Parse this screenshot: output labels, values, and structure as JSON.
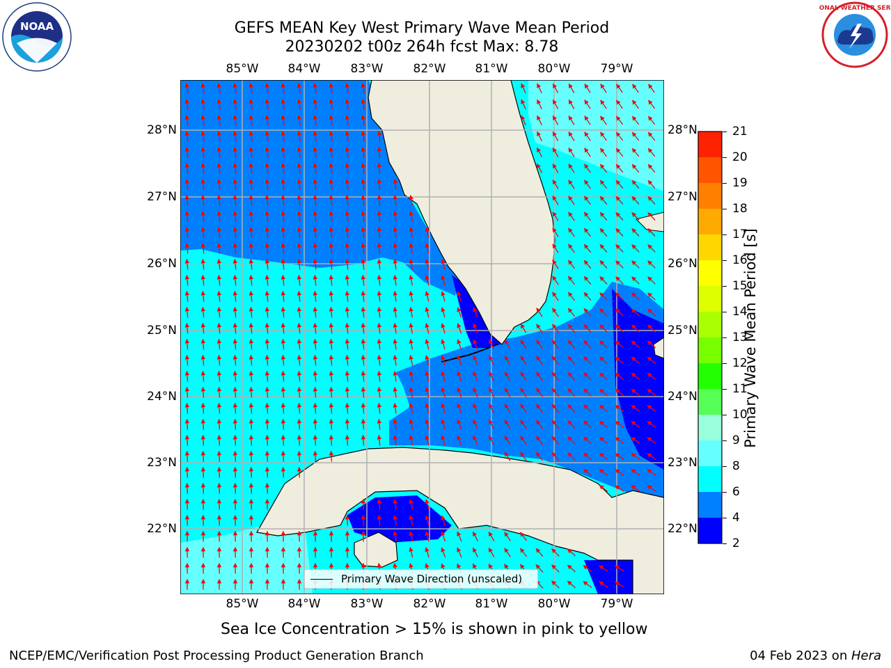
{
  "title_line1": "GEFS MEAN Key West Primary Wave Mean Period",
  "title_line2": "20230202 t00z 264h fcst   Max: 8.78",
  "lon_labels": [
    "85°W",
    "84°W",
    "83°W",
    "82°W",
    "81°W",
    "80°W",
    "79°W"
  ],
  "lat_labels": [
    "28°N",
    "27°N",
    "26°N",
    "25°N",
    "24°N",
    "23°N",
    "22°N"
  ],
  "legend_label": "Primary Wave Direction (unscaled)",
  "colorbar": {
    "label": "Primary Wave Mean Period [s]",
    "ticks": [
      "2",
      "4",
      "6",
      "8",
      "9",
      "10",
      "11",
      "12",
      "13",
      "14",
      "15",
      "16",
      "17",
      "18",
      "19",
      "20",
      "21"
    ],
    "colors": [
      "#0000ff",
      "#0080ff",
      "#00ffff",
      "#66ffff",
      "#99ffdd",
      "#55ff55",
      "#22ff00",
      "#77ff00",
      "#aaff00",
      "#ddff00",
      "#ffff00",
      "#ffd700",
      "#ffaa00",
      "#ff8000",
      "#ff5500",
      "#ff2200"
    ]
  },
  "note": "Sea Ice Concentration > 15% is shown in pink to yellow",
  "footer_left": "NCEP/EMC/Verification Post Processing Product Generation Branch",
  "footer_right_date": "04 Feb 2023 on ",
  "footer_right_host": "Hera",
  "logos": {
    "left": {
      "icon": "noaa-logo",
      "text": "NOAA"
    },
    "right": {
      "icon": "nws-logo",
      "text": "NATIONAL WEATHER SERVICE"
    }
  },
  "colors": {
    "land": "#efedde",
    "arrow": "#ff0000",
    "grid": "#b0b0b0"
  }
}
